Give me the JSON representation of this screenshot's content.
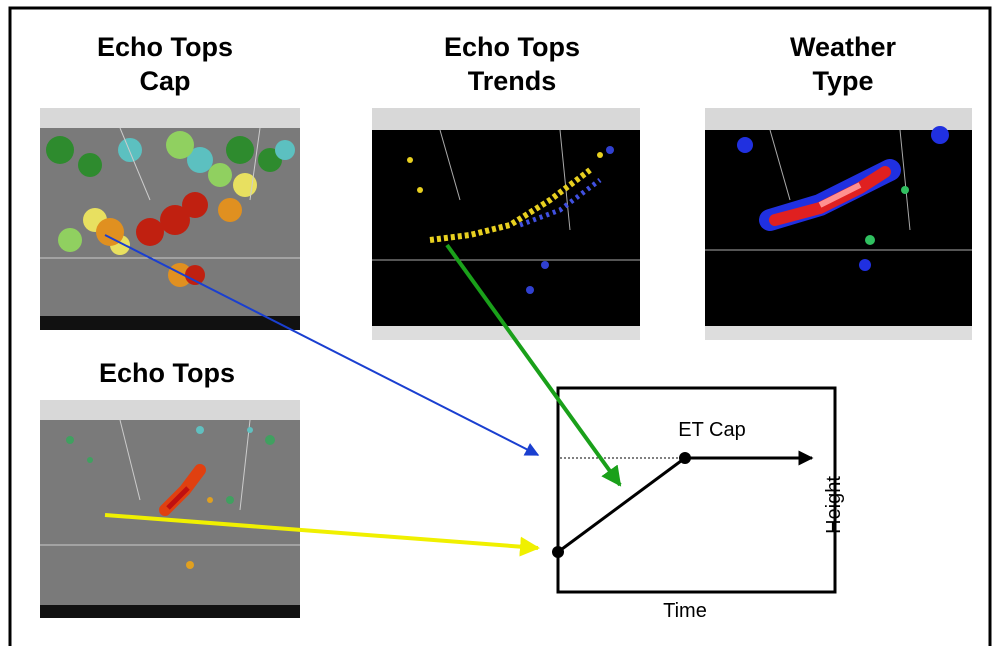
{
  "panels": [
    {
      "title": [
        "Echo Tops",
        "Cap"
      ]
    },
    {
      "title": [
        "Echo Tops",
        "Trends"
      ]
    },
    {
      "title": [
        "Weather",
        "Type"
      ]
    },
    {
      "title": [
        "Echo Tops"
      ]
    }
  ],
  "diagram": {
    "cap_label": "ET Cap",
    "y_label": "Height",
    "x_label": "Time"
  }
}
